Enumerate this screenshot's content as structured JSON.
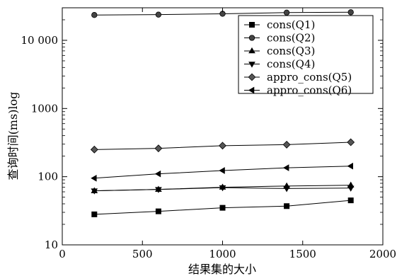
{
  "chart_data": {
    "type": "line",
    "xlabel": "结果集的大小",
    "ylabel": "查询时间(ms)log",
    "xlim": [
      0,
      2000
    ],
    "ylim": [
      10,
      30000
    ],
    "yscale": "log",
    "grid": false,
    "legend_position": "top-right",
    "x_ticks": [
      0,
      500,
      1000,
      1500,
      2000
    ],
    "x_tick_labels": [
      "0",
      "500",
      "1000",
      "1500",
      "2000"
    ],
    "y_ticks": [
      10,
      100,
      1000,
      10000
    ],
    "y_tick_labels": [
      "10",
      "100",
      "1000",
      "10 000"
    ],
    "x": [
      200,
      600,
      1000,
      1400,
      1800
    ],
    "series": [
      {
        "name": "cons(Q1)",
        "marker": "square",
        "values": [
          28,
          31,
          35,
          37,
          45
        ]
      },
      {
        "name": "cons(Q2)",
        "marker": "circle",
        "values": [
          23500,
          23800,
          24500,
          25500,
          25800
        ]
      },
      {
        "name": "cons(Q3)",
        "marker": "triangle-up",
        "values": [
          62,
          65,
          70,
          73,
          75
        ]
      },
      {
        "name": "cons(Q4)",
        "marker": "triangle-down",
        "values": [
          62,
          65,
          69,
          67,
          68
        ]
      },
      {
        "name": "appro_cons(Q5)",
        "marker": "diamond",
        "values": [
          250,
          260,
          285,
          295,
          320
        ]
      },
      {
        "name": "appro_cons(Q6)",
        "marker": "triangle-left",
        "values": [
          95,
          110,
          123,
          135,
          143
        ]
      }
    ]
  }
}
